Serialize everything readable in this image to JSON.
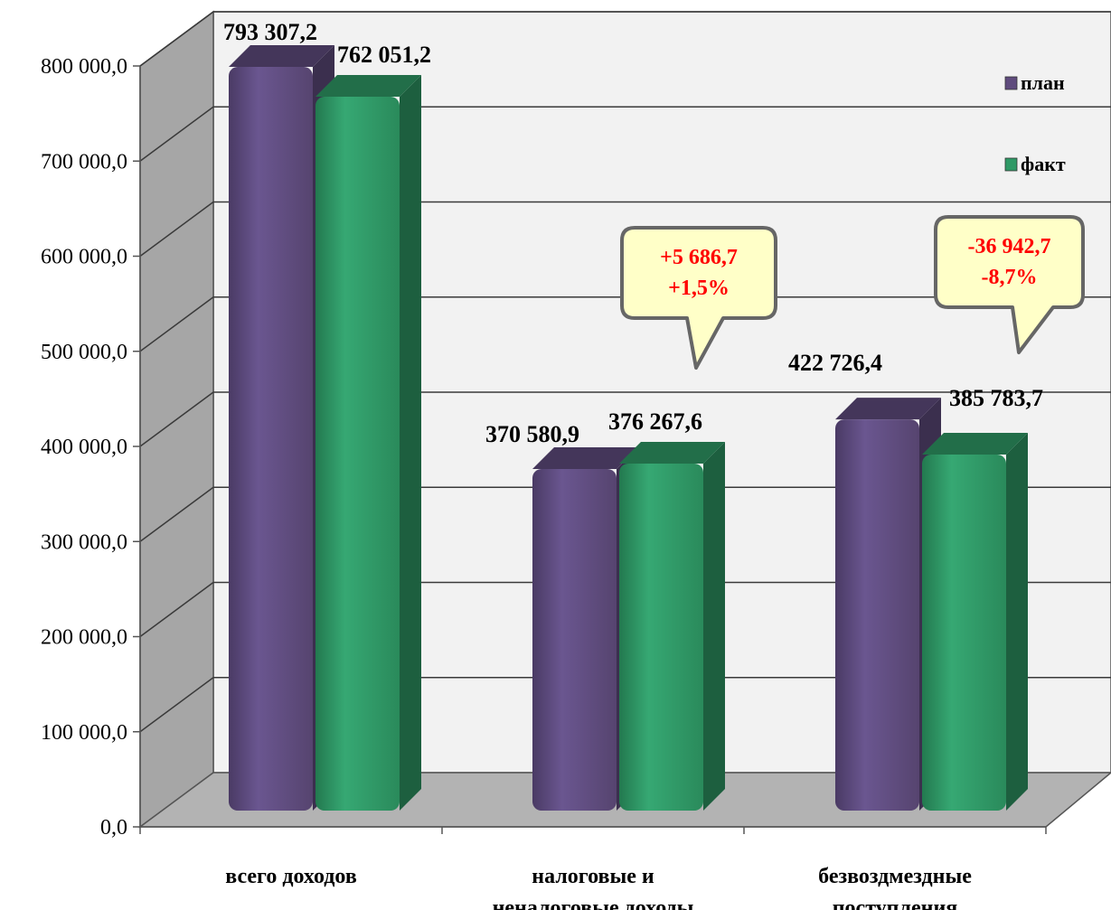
{
  "chart_data": {
    "type": "bar",
    "categories": [
      [
        "всего доходов"
      ],
      [
        "налоговые и",
        "неналоговые доходы"
      ],
      [
        "безвоздмездные",
        "поступления"
      ]
    ],
    "series": [
      {
        "name": "план",
        "values": [
          793307.2,
          370580.9,
          422726.4
        ],
        "labels": [
          "793 307,2",
          "370 580,9",
          "422 726,4"
        ],
        "color": "#5f4b7d"
      },
      {
        "name": "факт",
        "values": [
          762051.2,
          376267.6,
          385783.7
        ],
        "labels": [
          "762 051,2",
          "376 267,6",
          "385 783,7"
        ],
        "color": "#2f9966"
      }
    ],
    "ylim": [
      0,
      800000
    ],
    "yticks": [
      0,
      100000,
      200000,
      300000,
      400000,
      500000,
      600000,
      700000,
      800000
    ],
    "ytick_labels": [
      "0,0",
      "100 000,0",
      "200 000,0",
      "300 000,0",
      "400 000,0",
      "500 000,0",
      "600 000,0",
      "700 000,0",
      "800 000,0"
    ],
    "grid": true,
    "legend_position": "top-right",
    "annotations": [
      {
        "category_index": 1,
        "lines": [
          "+5 686,7",
          "+1,5%"
        ],
        "color": "#ff0000"
      },
      {
        "category_index": 2,
        "lines": [
          "-36 942,7",
          "-8,7%"
        ],
        "color": "#ff0000"
      }
    ]
  }
}
